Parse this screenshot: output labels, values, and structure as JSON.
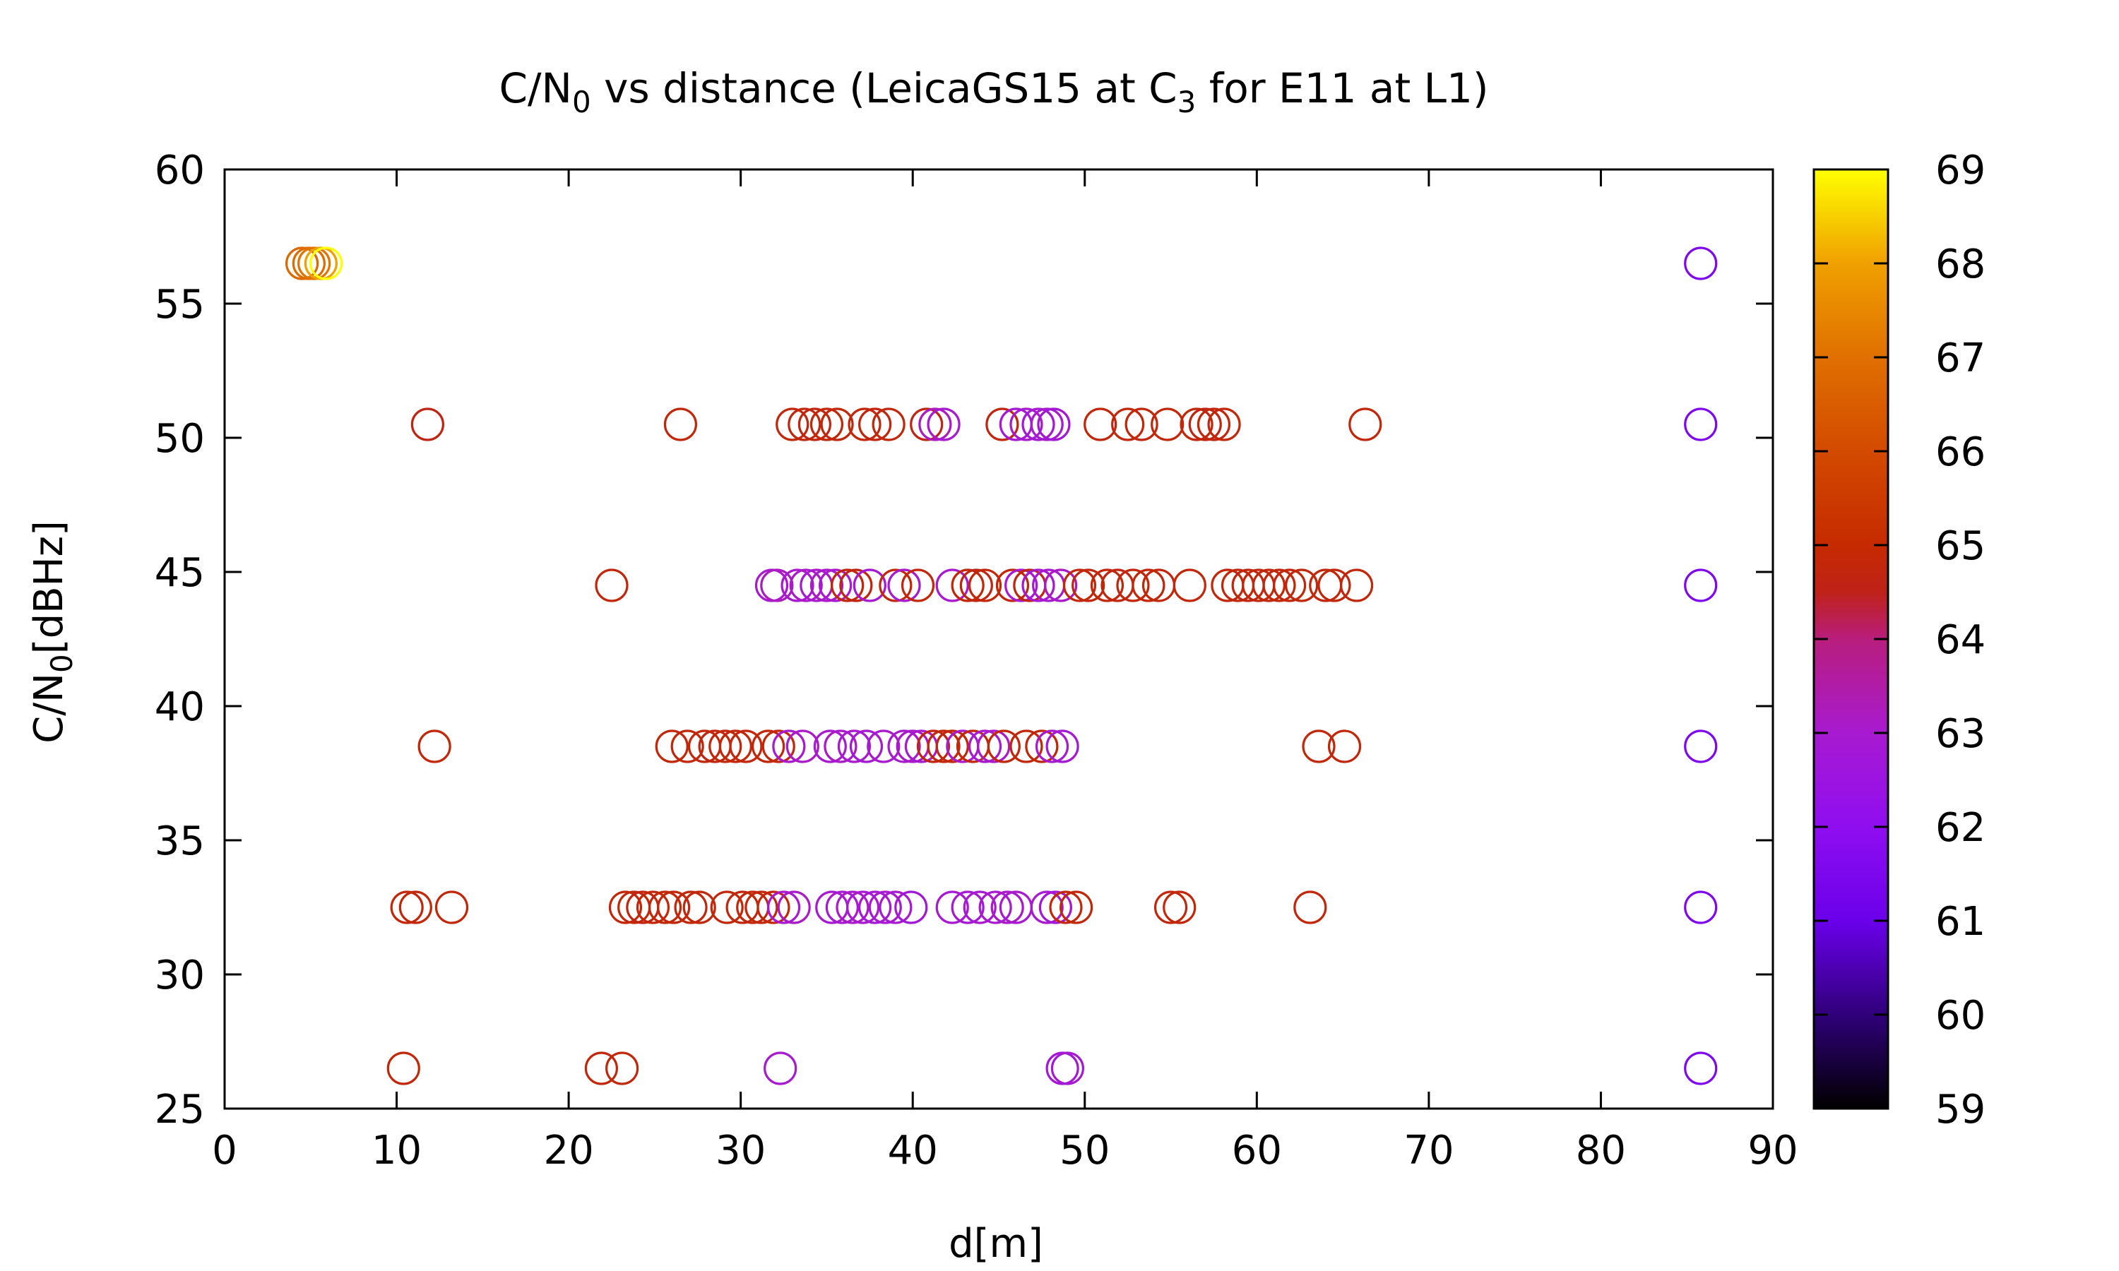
{
  "chart_data": {
    "type": "scatter",
    "title": "C/N0 vs distance (LeicaGS15 at C3 for E11 at L1)",
    "title_parts": {
      "a": "C/N",
      "a_sub": "0",
      "b": " vs distance (LeicaGS15 at C",
      "b_sub": "3",
      "c": " for E11 at L1)"
    },
    "xlabel": "d[m]",
    "ylabel": "C/N0[dBHz]",
    "ylabel_parts": {
      "a": "C/N",
      "a_sub": "0",
      "b": "[dBHz]"
    },
    "xlim": [
      0,
      90
    ],
    "ylim": [
      25,
      60
    ],
    "x_ticks": [
      0,
      10,
      20,
      30,
      40,
      50,
      60,
      70,
      80,
      90
    ],
    "y_ticks": [
      25,
      30,
      35,
      40,
      45,
      50,
      55,
      60
    ],
    "marker": "open-circle",
    "grid": false,
    "colorbar": {
      "range": [
        59,
        69
      ],
      "ticks": [
        59,
        60,
        61,
        62,
        63,
        64,
        65,
        66,
        67,
        68,
        69
      ],
      "palette": [
        {
          "at": 0.0,
          "color": "#000000"
        },
        {
          "at": 0.1,
          "color": "#30007a"
        },
        {
          "at": 0.2,
          "color": "#6a00ea"
        },
        {
          "at": 0.3,
          "color": "#8f0ef0"
        },
        {
          "at": 0.4,
          "color": "#a81ad0"
        },
        {
          "at": 0.5,
          "color": "#b81e7c"
        },
        {
          "at": 0.55,
          "color": "#bf2218"
        },
        {
          "at": 0.6,
          "color": "#c52a00"
        },
        {
          "at": 0.7,
          "color": "#d34a00"
        },
        {
          "at": 0.8,
          "color": "#e07000"
        },
        {
          "at": 0.9,
          "color": "#f0a000"
        },
        {
          "at": 1.0,
          "color": "#ffff00"
        }
      ]
    },
    "points": [
      {
        "x": 4.5,
        "y": 56.5,
        "c": 66.8
      },
      {
        "x": 4.9,
        "y": 56.5,
        "c": 66.9
      },
      {
        "x": 5.2,
        "y": 56.5,
        "c": 67.1
      },
      {
        "x": 5.6,
        "y": 56.5,
        "c": 68.0
      },
      {
        "x": 5.9,
        "y": 56.5,
        "c": 69.0
      },
      {
        "x": 11.8,
        "y": 50.5,
        "c": 64.6
      },
      {
        "x": 26.5,
        "y": 50.5,
        "c": 64.8
      },
      {
        "x": 33.0,
        "y": 50.5,
        "c": 64.8
      },
      {
        "x": 33.7,
        "y": 50.5,
        "c": 64.8
      },
      {
        "x": 34.3,
        "y": 50.5,
        "c": 64.7
      },
      {
        "x": 35.0,
        "y": 50.5,
        "c": 64.8
      },
      {
        "x": 35.6,
        "y": 50.5,
        "c": 64.8
      },
      {
        "x": 37.2,
        "y": 50.5,
        "c": 64.8
      },
      {
        "x": 37.8,
        "y": 50.5,
        "c": 64.7
      },
      {
        "x": 38.6,
        "y": 50.5,
        "c": 64.8
      },
      {
        "x": 40.8,
        "y": 50.5,
        "c": 64.6
      },
      {
        "x": 41.3,
        "y": 50.5,
        "c": 63.2
      },
      {
        "x": 41.8,
        "y": 50.5,
        "c": 63.0
      },
      {
        "x": 45.2,
        "y": 50.5,
        "c": 64.7
      },
      {
        "x": 46.0,
        "y": 50.5,
        "c": 62.9
      },
      {
        "x": 46.6,
        "y": 50.5,
        "c": 63.0
      },
      {
        "x": 47.3,
        "y": 50.5,
        "c": 62.9
      },
      {
        "x": 47.8,
        "y": 50.5,
        "c": 63.0
      },
      {
        "x": 48.2,
        "y": 50.5,
        "c": 62.8
      },
      {
        "x": 50.9,
        "y": 50.5,
        "c": 64.8
      },
      {
        "x": 52.5,
        "y": 50.5,
        "c": 64.8
      },
      {
        "x": 53.3,
        "y": 50.5,
        "c": 64.8
      },
      {
        "x": 54.8,
        "y": 50.5,
        "c": 64.8
      },
      {
        "x": 56.5,
        "y": 50.5,
        "c": 64.8
      },
      {
        "x": 57.0,
        "y": 50.5,
        "c": 64.7
      },
      {
        "x": 57.5,
        "y": 50.5,
        "c": 64.8
      },
      {
        "x": 58.1,
        "y": 50.5,
        "c": 64.8
      },
      {
        "x": 66.3,
        "y": 50.5,
        "c": 64.8
      },
      {
        "x": 85.8,
        "y": 50.5,
        "c": 61.6
      },
      {
        "x": 22.5,
        "y": 44.5,
        "c": 64.8
      },
      {
        "x": 31.8,
        "y": 44.5,
        "c": 63.0
      },
      {
        "x": 32.1,
        "y": 44.5,
        "c": 63.2
      },
      {
        "x": 33.3,
        "y": 44.5,
        "c": 63.0
      },
      {
        "x": 33.8,
        "y": 44.5,
        "c": 63.1
      },
      {
        "x": 34.4,
        "y": 44.5,
        "c": 63.0
      },
      {
        "x": 35.0,
        "y": 44.5,
        "c": 63.1
      },
      {
        "x": 35.5,
        "y": 44.5,
        "c": 63.0
      },
      {
        "x": 36.2,
        "y": 44.5,
        "c": 64.8
      },
      {
        "x": 36.7,
        "y": 44.5,
        "c": 64.7
      },
      {
        "x": 37.5,
        "y": 44.5,
        "c": 62.9
      },
      {
        "x": 39.0,
        "y": 44.5,
        "c": 64.8
      },
      {
        "x": 39.5,
        "y": 44.5,
        "c": 63.0
      },
      {
        "x": 40.3,
        "y": 44.5,
        "c": 64.8
      },
      {
        "x": 42.3,
        "y": 44.5,
        "c": 63.0
      },
      {
        "x": 43.2,
        "y": 44.5,
        "c": 64.8
      },
      {
        "x": 43.7,
        "y": 44.5,
        "c": 64.7
      },
      {
        "x": 44.2,
        "y": 44.5,
        "c": 64.8
      },
      {
        "x": 45.8,
        "y": 44.5,
        "c": 64.8
      },
      {
        "x": 46.3,
        "y": 44.5,
        "c": 63.0
      },
      {
        "x": 46.8,
        "y": 44.5,
        "c": 64.7
      },
      {
        "x": 47.3,
        "y": 44.5,
        "c": 62.9
      },
      {
        "x": 47.9,
        "y": 44.5,
        "c": 63.0
      },
      {
        "x": 48.6,
        "y": 44.5,
        "c": 63.1
      },
      {
        "x": 49.7,
        "y": 44.5,
        "c": 64.8
      },
      {
        "x": 50.2,
        "y": 44.5,
        "c": 64.8
      },
      {
        "x": 51.3,
        "y": 44.5,
        "c": 64.8
      },
      {
        "x": 51.9,
        "y": 44.5,
        "c": 64.7
      },
      {
        "x": 52.8,
        "y": 44.5,
        "c": 64.8
      },
      {
        "x": 53.7,
        "y": 44.5,
        "c": 64.8
      },
      {
        "x": 54.3,
        "y": 44.5,
        "c": 64.8
      },
      {
        "x": 56.1,
        "y": 44.5,
        "c": 64.8
      },
      {
        "x": 58.3,
        "y": 44.5,
        "c": 64.8
      },
      {
        "x": 58.9,
        "y": 44.5,
        "c": 64.8
      },
      {
        "x": 59.5,
        "y": 44.5,
        "c": 64.7
      },
      {
        "x": 60.1,
        "y": 44.5,
        "c": 64.8
      },
      {
        "x": 60.7,
        "y": 44.5,
        "c": 64.8
      },
      {
        "x": 61.3,
        "y": 44.5,
        "c": 64.8
      },
      {
        "x": 61.9,
        "y": 44.5,
        "c": 64.8
      },
      {
        "x": 62.6,
        "y": 44.5,
        "c": 64.8
      },
      {
        "x": 64.0,
        "y": 44.5,
        "c": 64.8
      },
      {
        "x": 64.5,
        "y": 44.5,
        "c": 64.8
      },
      {
        "x": 65.8,
        "y": 44.5,
        "c": 64.8
      },
      {
        "x": 85.8,
        "y": 44.5,
        "c": 61.6
      },
      {
        "x": 12.2,
        "y": 38.5,
        "c": 64.8
      },
      {
        "x": 26.0,
        "y": 38.5,
        "c": 64.8
      },
      {
        "x": 26.9,
        "y": 38.5,
        "c": 64.8
      },
      {
        "x": 27.9,
        "y": 38.5,
        "c": 64.8
      },
      {
        "x": 28.5,
        "y": 38.5,
        "c": 64.7
      },
      {
        "x": 29.1,
        "y": 38.5,
        "c": 64.8
      },
      {
        "x": 29.7,
        "y": 38.5,
        "c": 64.8
      },
      {
        "x": 30.3,
        "y": 38.5,
        "c": 64.8
      },
      {
        "x": 31.6,
        "y": 38.5,
        "c": 64.8
      },
      {
        "x": 32.2,
        "y": 38.5,
        "c": 64.8
      },
      {
        "x": 32.8,
        "y": 38.5,
        "c": 63.0
      },
      {
        "x": 33.6,
        "y": 38.5,
        "c": 63.1
      },
      {
        "x": 35.2,
        "y": 38.5,
        "c": 63.0
      },
      {
        "x": 35.8,
        "y": 38.5,
        "c": 63.1
      },
      {
        "x": 36.6,
        "y": 38.5,
        "c": 63.0
      },
      {
        "x": 37.3,
        "y": 38.5,
        "c": 62.9
      },
      {
        "x": 38.3,
        "y": 38.5,
        "c": 63.0
      },
      {
        "x": 39.5,
        "y": 38.5,
        "c": 63.0
      },
      {
        "x": 40.0,
        "y": 38.5,
        "c": 63.1
      },
      {
        "x": 40.5,
        "y": 38.5,
        "c": 63.0
      },
      {
        "x": 41.2,
        "y": 38.5,
        "c": 64.7
      },
      {
        "x": 41.8,
        "y": 38.5,
        "c": 64.8
      },
      {
        "x": 42.3,
        "y": 38.5,
        "c": 64.8
      },
      {
        "x": 42.9,
        "y": 38.5,
        "c": 63.0
      },
      {
        "x": 43.5,
        "y": 38.5,
        "c": 64.8
      },
      {
        "x": 44.2,
        "y": 38.5,
        "c": 63.0
      },
      {
        "x": 44.7,
        "y": 38.5,
        "c": 63.1
      },
      {
        "x": 45.3,
        "y": 38.5,
        "c": 64.8
      },
      {
        "x": 46.6,
        "y": 38.5,
        "c": 64.8
      },
      {
        "x": 47.5,
        "y": 38.5,
        "c": 64.8
      },
      {
        "x": 48.1,
        "y": 38.5,
        "c": 63.0
      },
      {
        "x": 48.7,
        "y": 38.5,
        "c": 62.9
      },
      {
        "x": 63.6,
        "y": 38.5,
        "c": 64.8
      },
      {
        "x": 65.1,
        "y": 38.5,
        "c": 64.8
      },
      {
        "x": 85.8,
        "y": 38.5,
        "c": 61.6
      },
      {
        "x": 10.6,
        "y": 32.5,
        "c": 64.8
      },
      {
        "x": 11.1,
        "y": 32.5,
        "c": 64.8
      },
      {
        "x": 13.2,
        "y": 32.5,
        "c": 64.8
      },
      {
        "x": 23.3,
        "y": 32.5,
        "c": 64.8
      },
      {
        "x": 23.8,
        "y": 32.5,
        "c": 64.8
      },
      {
        "x": 24.3,
        "y": 32.5,
        "c": 64.7
      },
      {
        "x": 24.9,
        "y": 32.5,
        "c": 64.8
      },
      {
        "x": 25.6,
        "y": 32.5,
        "c": 64.8
      },
      {
        "x": 26.1,
        "y": 32.5,
        "c": 64.8
      },
      {
        "x": 27.1,
        "y": 32.5,
        "c": 64.8
      },
      {
        "x": 27.6,
        "y": 32.5,
        "c": 64.8
      },
      {
        "x": 29.2,
        "y": 32.5,
        "c": 64.8
      },
      {
        "x": 30.1,
        "y": 32.5,
        "c": 64.8
      },
      {
        "x": 30.7,
        "y": 32.5,
        "c": 64.8
      },
      {
        "x": 31.2,
        "y": 32.5,
        "c": 64.8
      },
      {
        "x": 31.9,
        "y": 32.5,
        "c": 64.8
      },
      {
        "x": 32.5,
        "y": 32.5,
        "c": 63.0
      },
      {
        "x": 33.1,
        "y": 32.5,
        "c": 63.1
      },
      {
        "x": 35.3,
        "y": 32.5,
        "c": 63.0
      },
      {
        "x": 35.9,
        "y": 32.5,
        "c": 63.0
      },
      {
        "x": 36.5,
        "y": 32.5,
        "c": 63.1
      },
      {
        "x": 37.1,
        "y": 32.5,
        "c": 63.0
      },
      {
        "x": 37.8,
        "y": 32.5,
        "c": 62.9
      },
      {
        "x": 38.4,
        "y": 32.5,
        "c": 63.0
      },
      {
        "x": 39.0,
        "y": 32.5,
        "c": 63.0
      },
      {
        "x": 39.9,
        "y": 32.5,
        "c": 62.8
      },
      {
        "x": 42.3,
        "y": 32.5,
        "c": 63.0
      },
      {
        "x": 43.2,
        "y": 32.5,
        "c": 62.9
      },
      {
        "x": 43.9,
        "y": 32.5,
        "c": 63.0
      },
      {
        "x": 44.8,
        "y": 32.5,
        "c": 63.0
      },
      {
        "x": 45.5,
        "y": 32.5,
        "c": 63.1
      },
      {
        "x": 46.0,
        "y": 32.5,
        "c": 63.0
      },
      {
        "x": 47.8,
        "y": 32.5,
        "c": 63.0
      },
      {
        "x": 48.3,
        "y": 32.5,
        "c": 62.8
      },
      {
        "x": 48.9,
        "y": 32.5,
        "c": 64.8
      },
      {
        "x": 49.5,
        "y": 32.5,
        "c": 64.8
      },
      {
        "x": 55.0,
        "y": 32.5,
        "c": 64.8
      },
      {
        "x": 55.5,
        "y": 32.5,
        "c": 64.8
      },
      {
        "x": 63.1,
        "y": 32.5,
        "c": 64.8
      },
      {
        "x": 85.8,
        "y": 32.5,
        "c": 61.6
      },
      {
        "x": 10.4,
        "y": 26.5,
        "c": 64.8
      },
      {
        "x": 21.9,
        "y": 26.5,
        "c": 64.8
      },
      {
        "x": 23.1,
        "y": 26.5,
        "c": 64.8
      },
      {
        "x": 32.3,
        "y": 26.5,
        "c": 63.0
      },
      {
        "x": 48.7,
        "y": 26.5,
        "c": 62.8
      },
      {
        "x": 49.0,
        "y": 26.5,
        "c": 62.9
      },
      {
        "x": 85.8,
        "y": 26.5,
        "c": 61.6
      },
      {
        "x": 85.8,
        "y": 56.5,
        "c": 61.6
      }
    ]
  }
}
